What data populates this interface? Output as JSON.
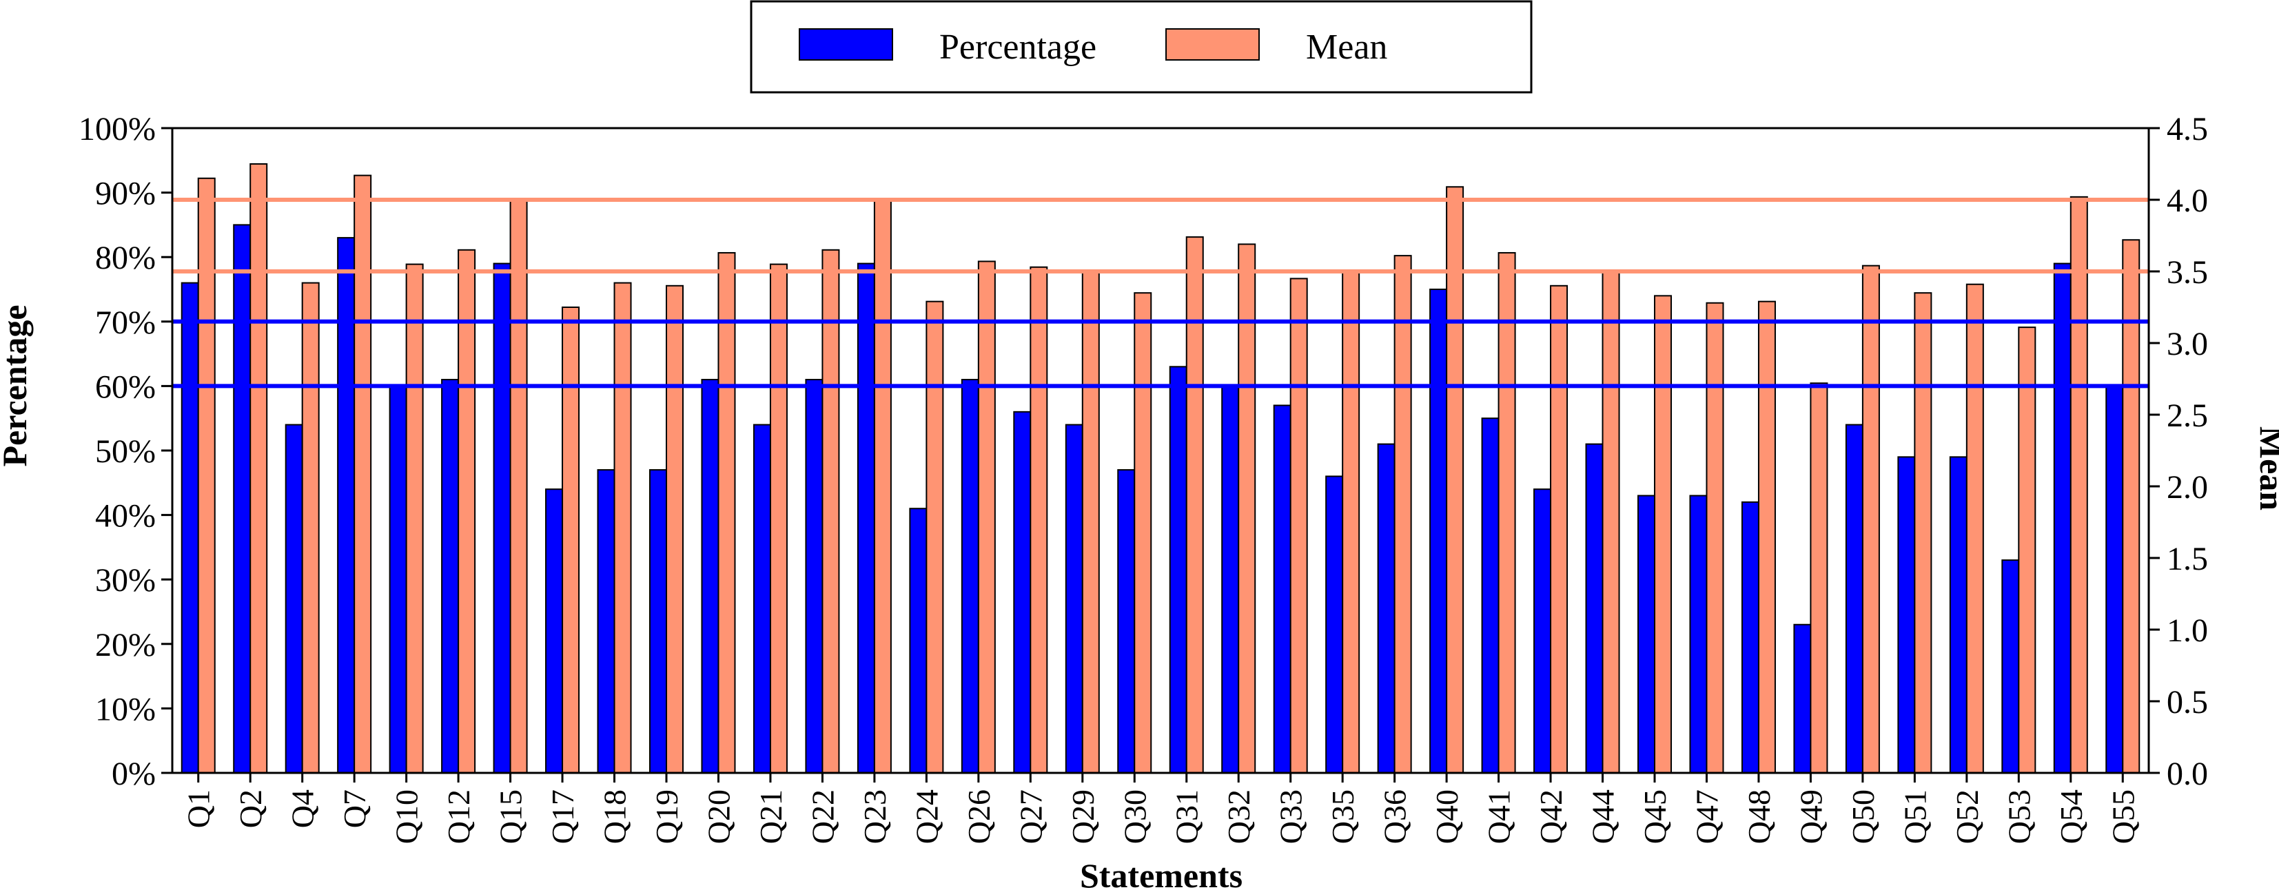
{
  "chart_data": {
    "type": "bar",
    "xlabel": "Statements",
    "ylabel_left": "Percentage",
    "ylabel_right": "Mean",
    "left_axis": {
      "min": 0,
      "max": 100,
      "step": 10,
      "tick_labels": [
        "0%",
        "10%",
        "20%",
        "30%",
        "40%",
        "50%",
        "60%",
        "70%",
        "80%",
        "90%",
        "100%"
      ]
    },
    "right_axis": {
      "min": 0,
      "max": 4.5,
      "step": 0.5,
      "tick_labels": [
        "0.0",
        "0.5",
        "1.0",
        "1.5",
        "2.0",
        "2.5",
        "3.0",
        "3.5",
        "4.0",
        "4.5"
      ]
    },
    "legend": {
      "placement": "top-center",
      "entries": [
        "Percentage",
        "Mean"
      ]
    },
    "categories": [
      "Q1",
      "Q2",
      "Q4",
      "Q7",
      "Q10",
      "Q12",
      "Q15",
      "Q17",
      "Q18",
      "Q19",
      "Q20",
      "Q21",
      "Q22",
      "Q23",
      "Q24",
      "Q26",
      "Q27",
      "Q29",
      "Q30",
      "Q31",
      "Q32",
      "Q33",
      "Q35",
      "Q36",
      "Q40",
      "Q41",
      "Q42",
      "Q44",
      "Q45",
      "Q47",
      "Q48",
      "Q49",
      "Q50",
      "Q51",
      "Q52",
      "Q53",
      "Q54",
      "Q55"
    ],
    "series": [
      {
        "name": "Percentage",
        "axis": "left",
        "color": "#0000ff",
        "values": [
          76,
          85,
          54,
          83,
          60,
          61,
          79,
          44,
          47,
          47,
          61,
          54,
          61,
          79,
          41,
          61,
          56,
          54,
          47,
          63,
          60,
          57,
          46,
          51,
          75,
          55,
          44,
          51,
          43,
          43,
          42,
          23,
          54,
          49,
          49,
          33,
          79,
          60
        ]
      },
      {
        "name": "Mean",
        "axis": "right",
        "color": "#ff9473",
        "values": [
          4.15,
          4.25,
          3.42,
          4.17,
          3.55,
          3.65,
          4.0,
          3.25,
          3.42,
          3.4,
          3.63,
          3.55,
          3.65,
          4.0,
          3.29,
          3.57,
          3.53,
          3.5,
          3.35,
          3.74,
          3.69,
          3.45,
          3.5,
          3.61,
          4.09,
          3.63,
          3.4,
          3.5,
          3.33,
          3.28,
          3.29,
          2.72,
          3.54,
          3.35,
          3.41,
          3.11,
          4.02,
          3.72
        ]
      }
    ],
    "reference_lines": [
      {
        "axis": "left",
        "value": 60,
        "color": "#0000ff"
      },
      {
        "axis": "left",
        "value": 70,
        "color": "#0000ff"
      },
      {
        "axis": "right",
        "value": 3.5,
        "color": "#ff9473"
      },
      {
        "axis": "right",
        "value": 4.0,
        "color": "#ff9473"
      }
    ],
    "grid": false
  }
}
